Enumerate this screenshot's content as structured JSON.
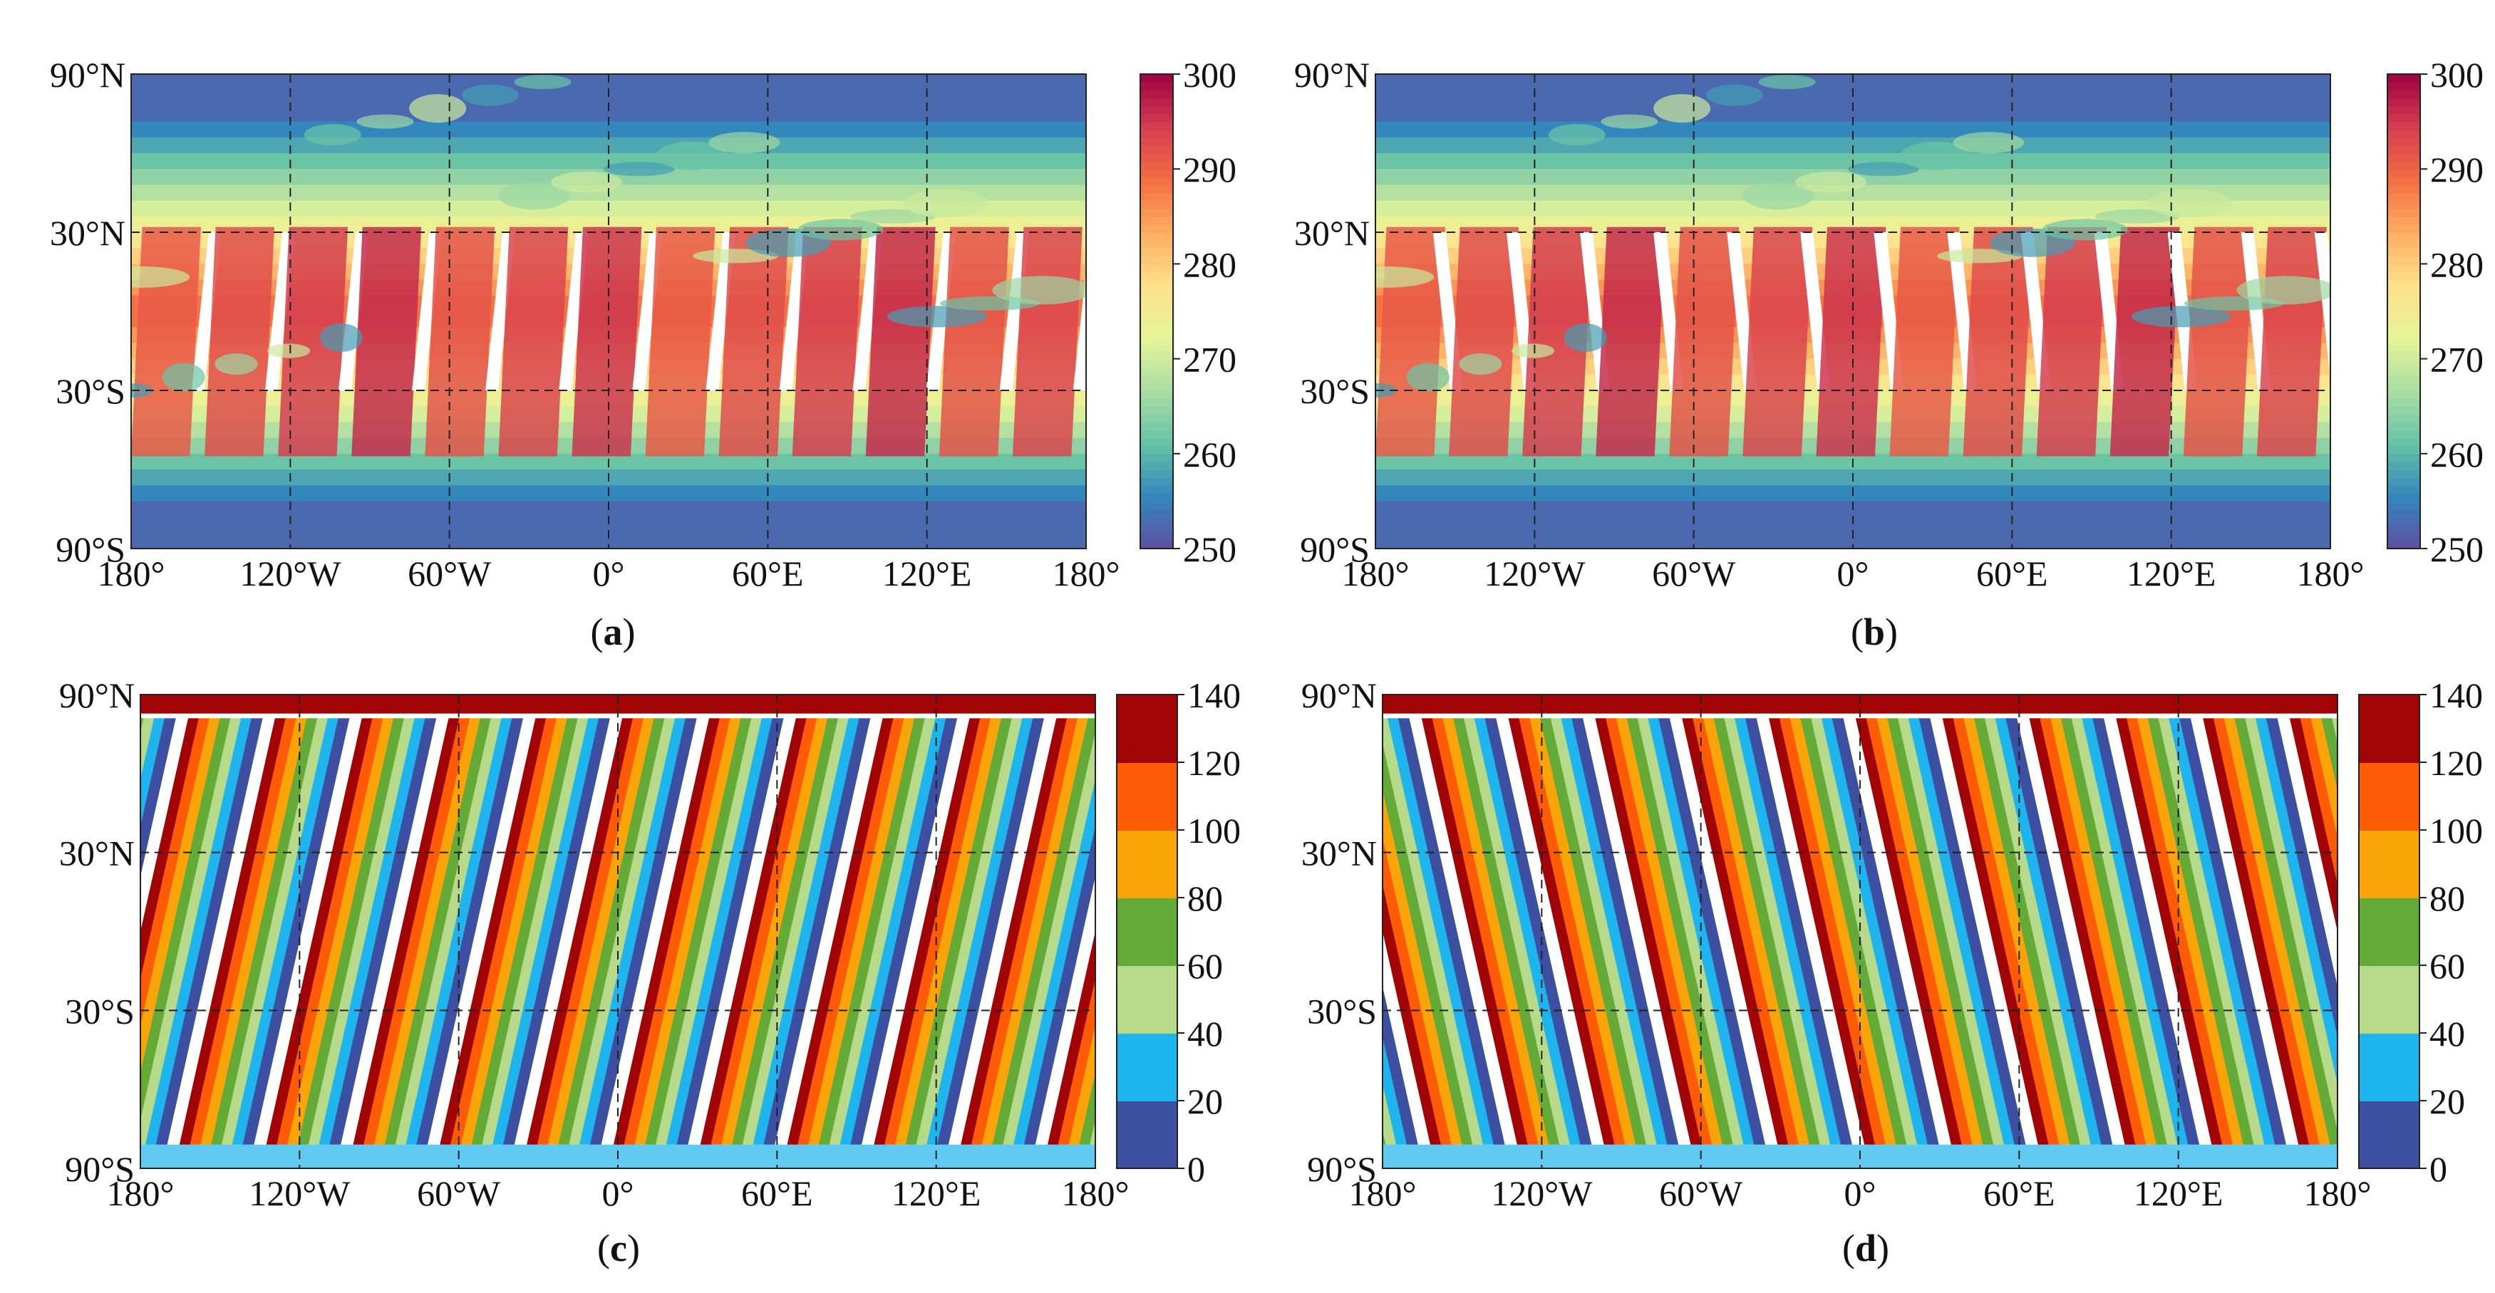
{
  "figure": {
    "panels": [
      {
        "id": "a",
        "label": "a",
        "kind": "temperature"
      },
      {
        "id": "b",
        "label": "b",
        "kind": "temperature"
      },
      {
        "id": "c",
        "label": "c",
        "kind": "orbit"
      },
      {
        "id": "d",
        "label": "d",
        "kind": "orbit"
      }
    ]
  },
  "chart_data": [
    {
      "type": "heatmap",
      "panel": "a",
      "title": "",
      "xlabel": "",
      "ylabel": "",
      "xlim": [
        -180,
        180
      ],
      "ylim": [
        -90,
        90
      ],
      "x_ticks": [
        {
          "value": -180,
          "label": "180°"
        },
        {
          "value": -120,
          "label": "120°W"
        },
        {
          "value": -60,
          "label": "60°W"
        },
        {
          "value": 0,
          "label": "0°"
        },
        {
          "value": 60,
          "label": "60°E"
        },
        {
          "value": 120,
          "label": "120°E"
        },
        {
          "value": 180,
          "label": "180°"
        }
      ],
      "y_ticks": [
        {
          "value": 90,
          "label": "90°N"
        },
        {
          "value": 30,
          "label": "30°N"
        },
        {
          "value": -30,
          "label": "30°S"
        },
        {
          "value": -90,
          "label": "90°S"
        }
      ],
      "grid": true,
      "colorbar": {
        "range": [
          250,
          300
        ],
        "ticks": [
          300,
          290,
          280,
          270,
          260,
          250
        ],
        "palette": [
          "#5e4fa2",
          "#3288bd",
          "#66c2a5",
          "#abdda4",
          "#e6f598",
          "#fee08b",
          "#fdae61",
          "#f46d43",
          "#d53e4f",
          "#9e0142"
        ]
      }
    },
    {
      "type": "heatmap",
      "panel": "b",
      "title": "",
      "xlabel": "",
      "ylabel": "",
      "xlim": [
        -180,
        180
      ],
      "ylim": [
        -90,
        90
      ],
      "x_ticks": [
        {
          "value": -180,
          "label": "180°"
        },
        {
          "value": -120,
          "label": "120°W"
        },
        {
          "value": -60,
          "label": "60°W"
        },
        {
          "value": 0,
          "label": "0°"
        },
        {
          "value": 60,
          "label": "60°E"
        },
        {
          "value": 120,
          "label": "120°E"
        },
        {
          "value": 180,
          "label": "180°"
        }
      ],
      "y_ticks": [
        {
          "value": 90,
          "label": "90°N"
        },
        {
          "value": 30,
          "label": "30°N"
        },
        {
          "value": -30,
          "label": "30°S"
        },
        {
          "value": -90,
          "label": "90°S"
        }
      ],
      "grid": true,
      "colorbar": {
        "range": [
          250,
          300
        ],
        "ticks": [
          300,
          290,
          280,
          270,
          260,
          250
        ],
        "palette": [
          "#5e4fa2",
          "#3288bd",
          "#66c2a5",
          "#abdda4",
          "#e6f598",
          "#fee08b",
          "#fdae61",
          "#f46d43",
          "#d53e4f",
          "#9e0142"
        ]
      }
    },
    {
      "type": "heatmap",
      "panel": "c",
      "title": "",
      "xlabel": "",
      "ylabel": "",
      "xlim": [
        -180,
        180
      ],
      "ylim": [
        -90,
        90
      ],
      "x_ticks": [
        {
          "value": -180,
          "label": "180°"
        },
        {
          "value": -120,
          "label": "120°W"
        },
        {
          "value": -60,
          "label": "60°W"
        },
        {
          "value": 0,
          "label": "0°"
        },
        {
          "value": 60,
          "label": "60°E"
        },
        {
          "value": 120,
          "label": "120°E"
        },
        {
          "value": 180,
          "label": "180°"
        }
      ],
      "y_ticks": [
        {
          "value": 90,
          "label": "90°N"
        },
        {
          "value": 30,
          "label": "30°N"
        },
        {
          "value": -30,
          "label": "30°S"
        },
        {
          "value": -90,
          "label": "90°S"
        }
      ],
      "grid": true,
      "colorbar": {
        "range": [
          0,
          140
        ],
        "ticks": [
          140,
          120,
          100,
          80,
          60,
          40,
          20,
          0
        ],
        "palette": [
          "#3d4fa1",
          "#1eb4ee",
          "#b6d98a",
          "#63ab36",
          "#fba40a",
          "#fe5b06",
          "#a10404"
        ]
      }
    },
    {
      "type": "heatmap",
      "panel": "d",
      "title": "",
      "xlabel": "",
      "ylabel": "",
      "xlim": [
        -180,
        180
      ],
      "ylim": [
        -90,
        90
      ],
      "x_ticks": [
        {
          "value": -180,
          "label": "180°"
        },
        {
          "value": -120,
          "label": "120°W"
        },
        {
          "value": -60,
          "label": "60°W"
        },
        {
          "value": 0,
          "label": "0°"
        },
        {
          "value": 60,
          "label": "60°E"
        },
        {
          "value": 120,
          "label": "120°E"
        },
        {
          "value": 180,
          "label": "180°"
        }
      ],
      "y_ticks": [
        {
          "value": 90,
          "label": "90°N"
        },
        {
          "value": 30,
          "label": "30°N"
        },
        {
          "value": -30,
          "label": "30°S"
        },
        {
          "value": -90,
          "label": "90°S"
        }
      ],
      "grid": true,
      "colorbar": {
        "range": [
          0,
          140
        ],
        "ticks": [
          140,
          120,
          100,
          80,
          60,
          40,
          20,
          0
        ],
        "palette": [
          "#3d4fa1",
          "#1eb4ee",
          "#b6d98a",
          "#63ab36",
          "#fba40a",
          "#fe5b06",
          "#a10404"
        ]
      }
    }
  ]
}
